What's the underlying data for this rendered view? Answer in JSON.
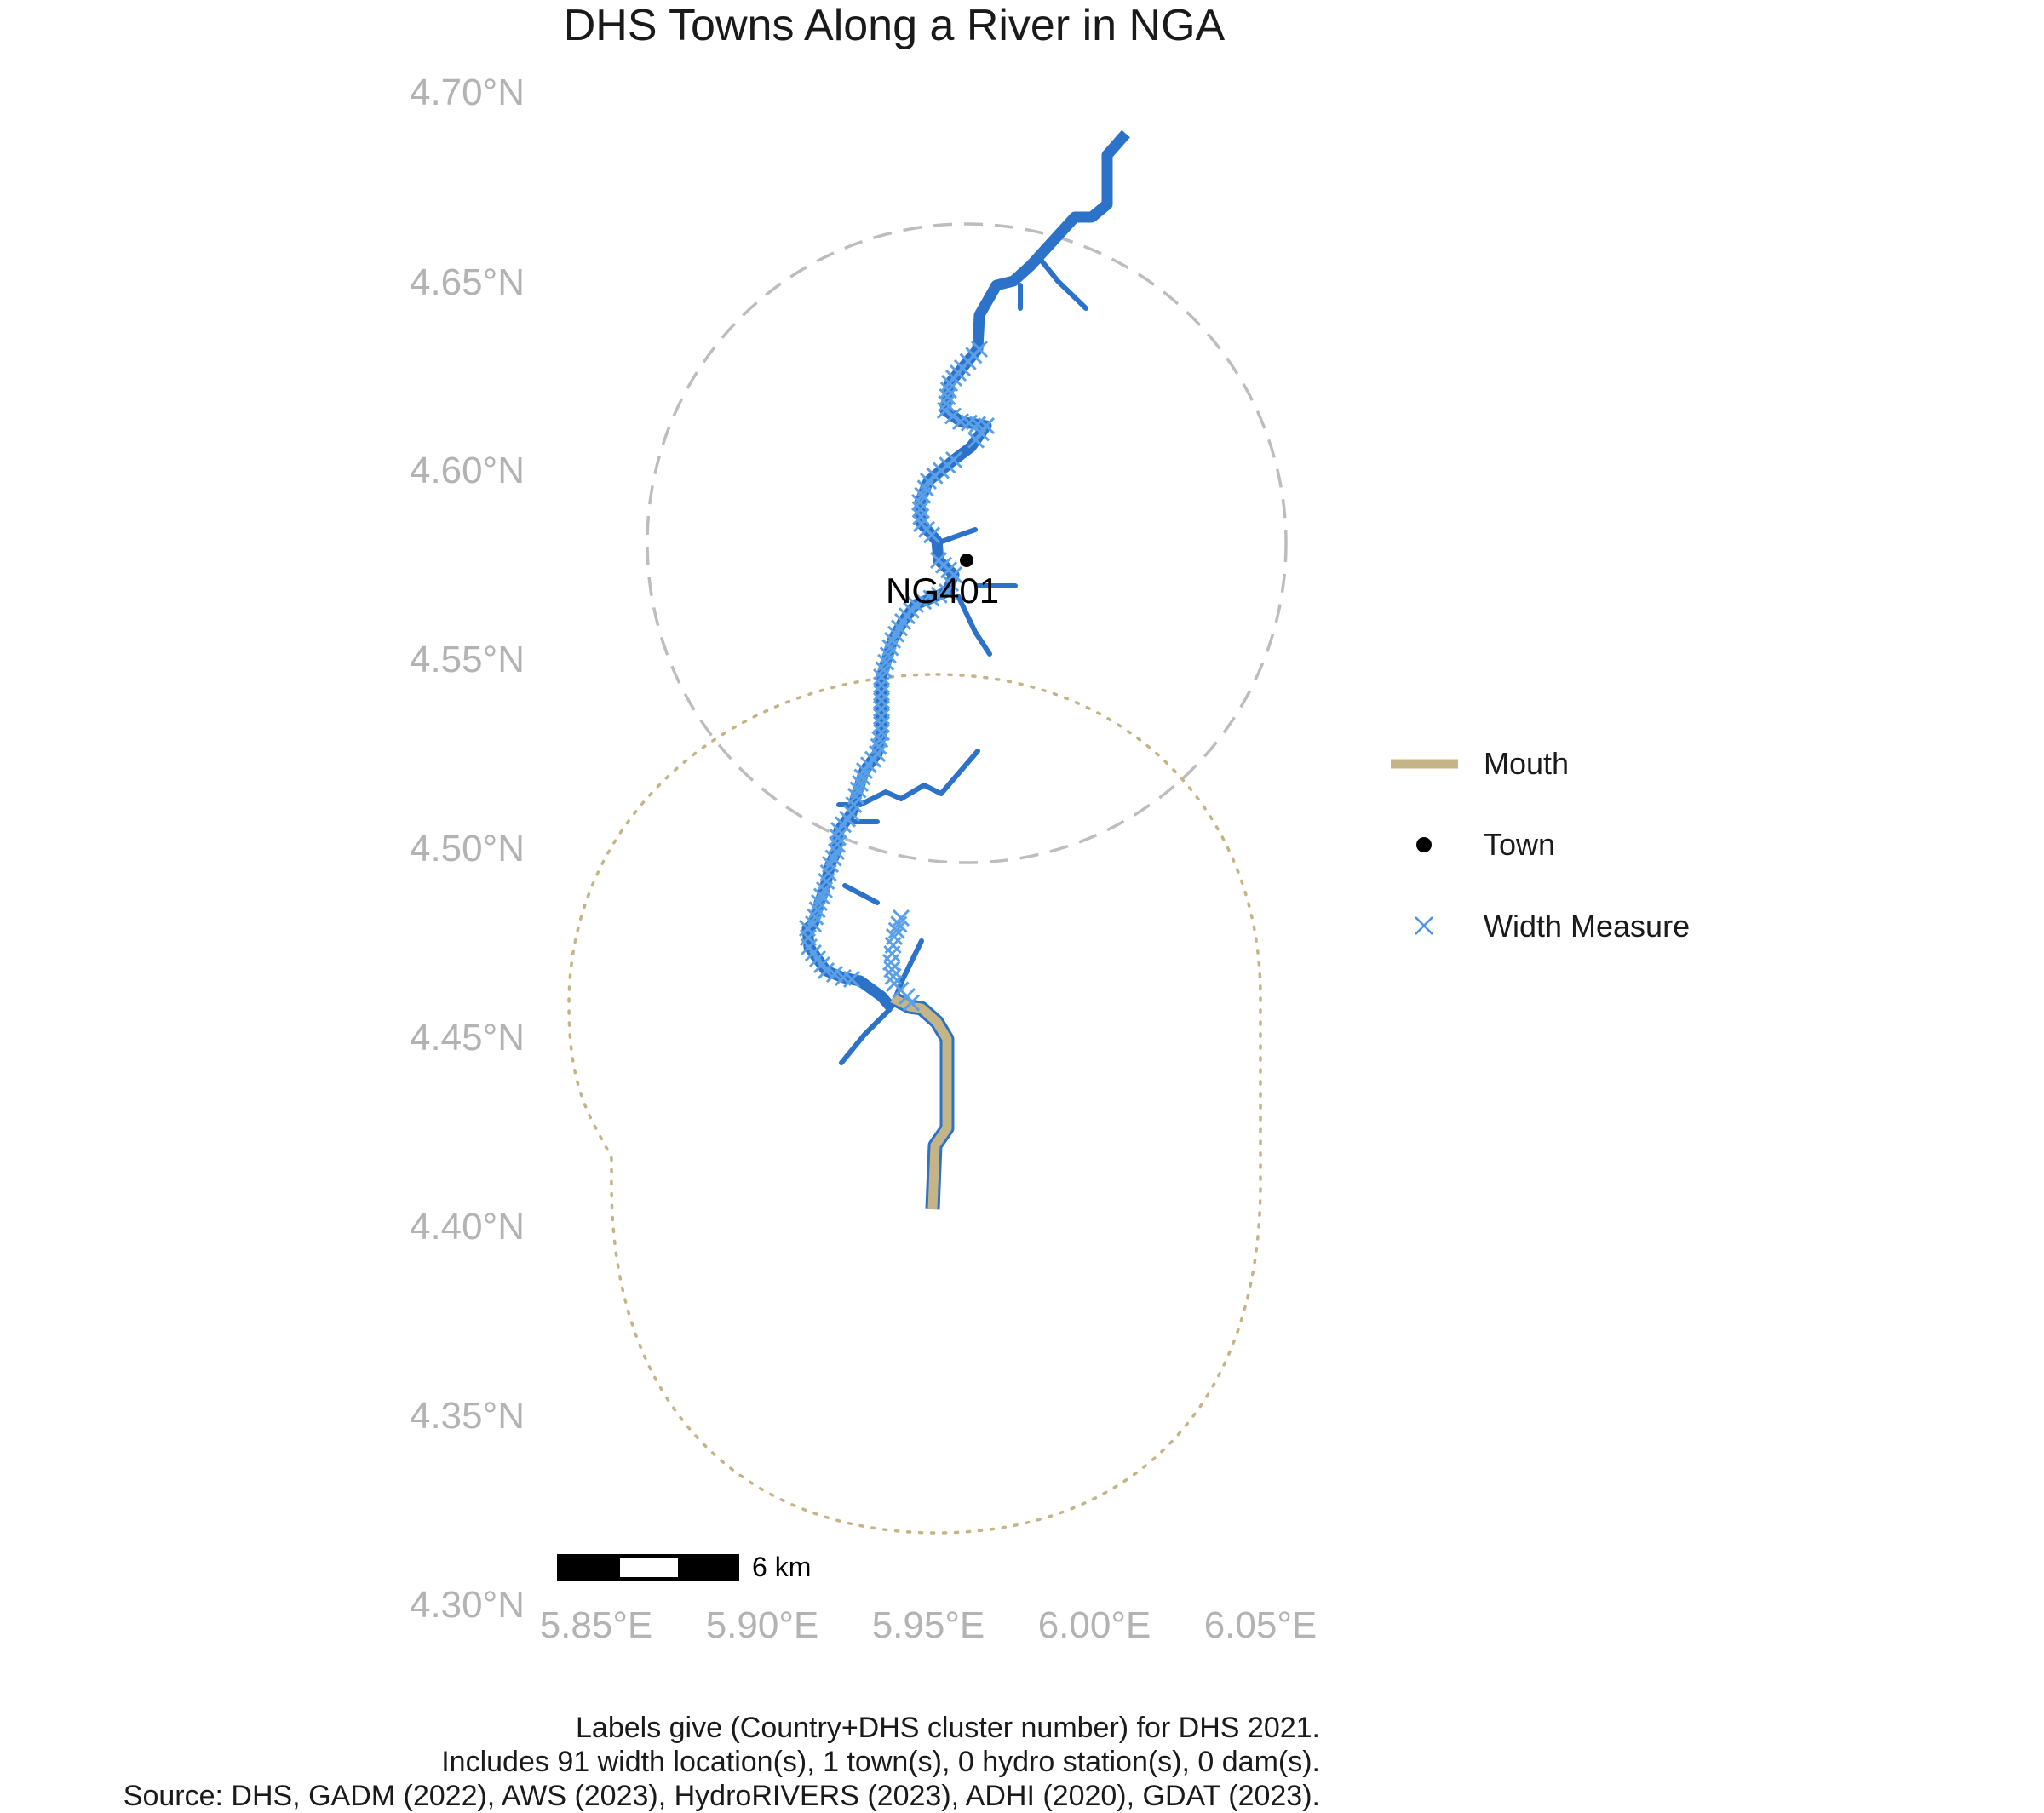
{
  "title": "DHS Towns Along a River in NGA",
  "axes": {
    "lat_labels": [
      "4.70°N",
      "4.65°N",
      "4.60°N",
      "4.55°N",
      "4.50°N",
      "4.45°N",
      "4.40°N",
      "4.35°N",
      "4.30°N"
    ],
    "lon_labels": [
      "5.85°E",
      "5.90°E",
      "5.95°E",
      "6.00°E",
      "6.05°E"
    ]
  },
  "map": {
    "town_label": "NG401",
    "scale_bar_label": "6 km"
  },
  "legend": {
    "items": [
      {
        "label": "Mouth",
        "symbol": "line",
        "color": "#c4b486"
      },
      {
        "label": "Town",
        "symbol": "dot",
        "color": "#000000"
      },
      {
        "label": "Width Measure",
        "symbol": "x",
        "color": "#4a90e2"
      }
    ]
  },
  "caption": {
    "line1": "Labels give (Country+DHS cluster number) for DHS 2021.",
    "line2": "Includes 91 width location(s), 1 town(s), 0 hydro station(s), 0 dam(s).",
    "line3": "Source: DHS, GADM (2022), AWS (2023), HydroRIVERS (2023), ADHI (2020), GDAT (2023)."
  },
  "colors": {
    "river": "#2b72c8",
    "width_measure": "#5aa0e8",
    "mouth": "#c4b486",
    "town": "#000000",
    "town_buffer": "#bdbdbd",
    "mouth_buffer": "#c4b486"
  }
}
